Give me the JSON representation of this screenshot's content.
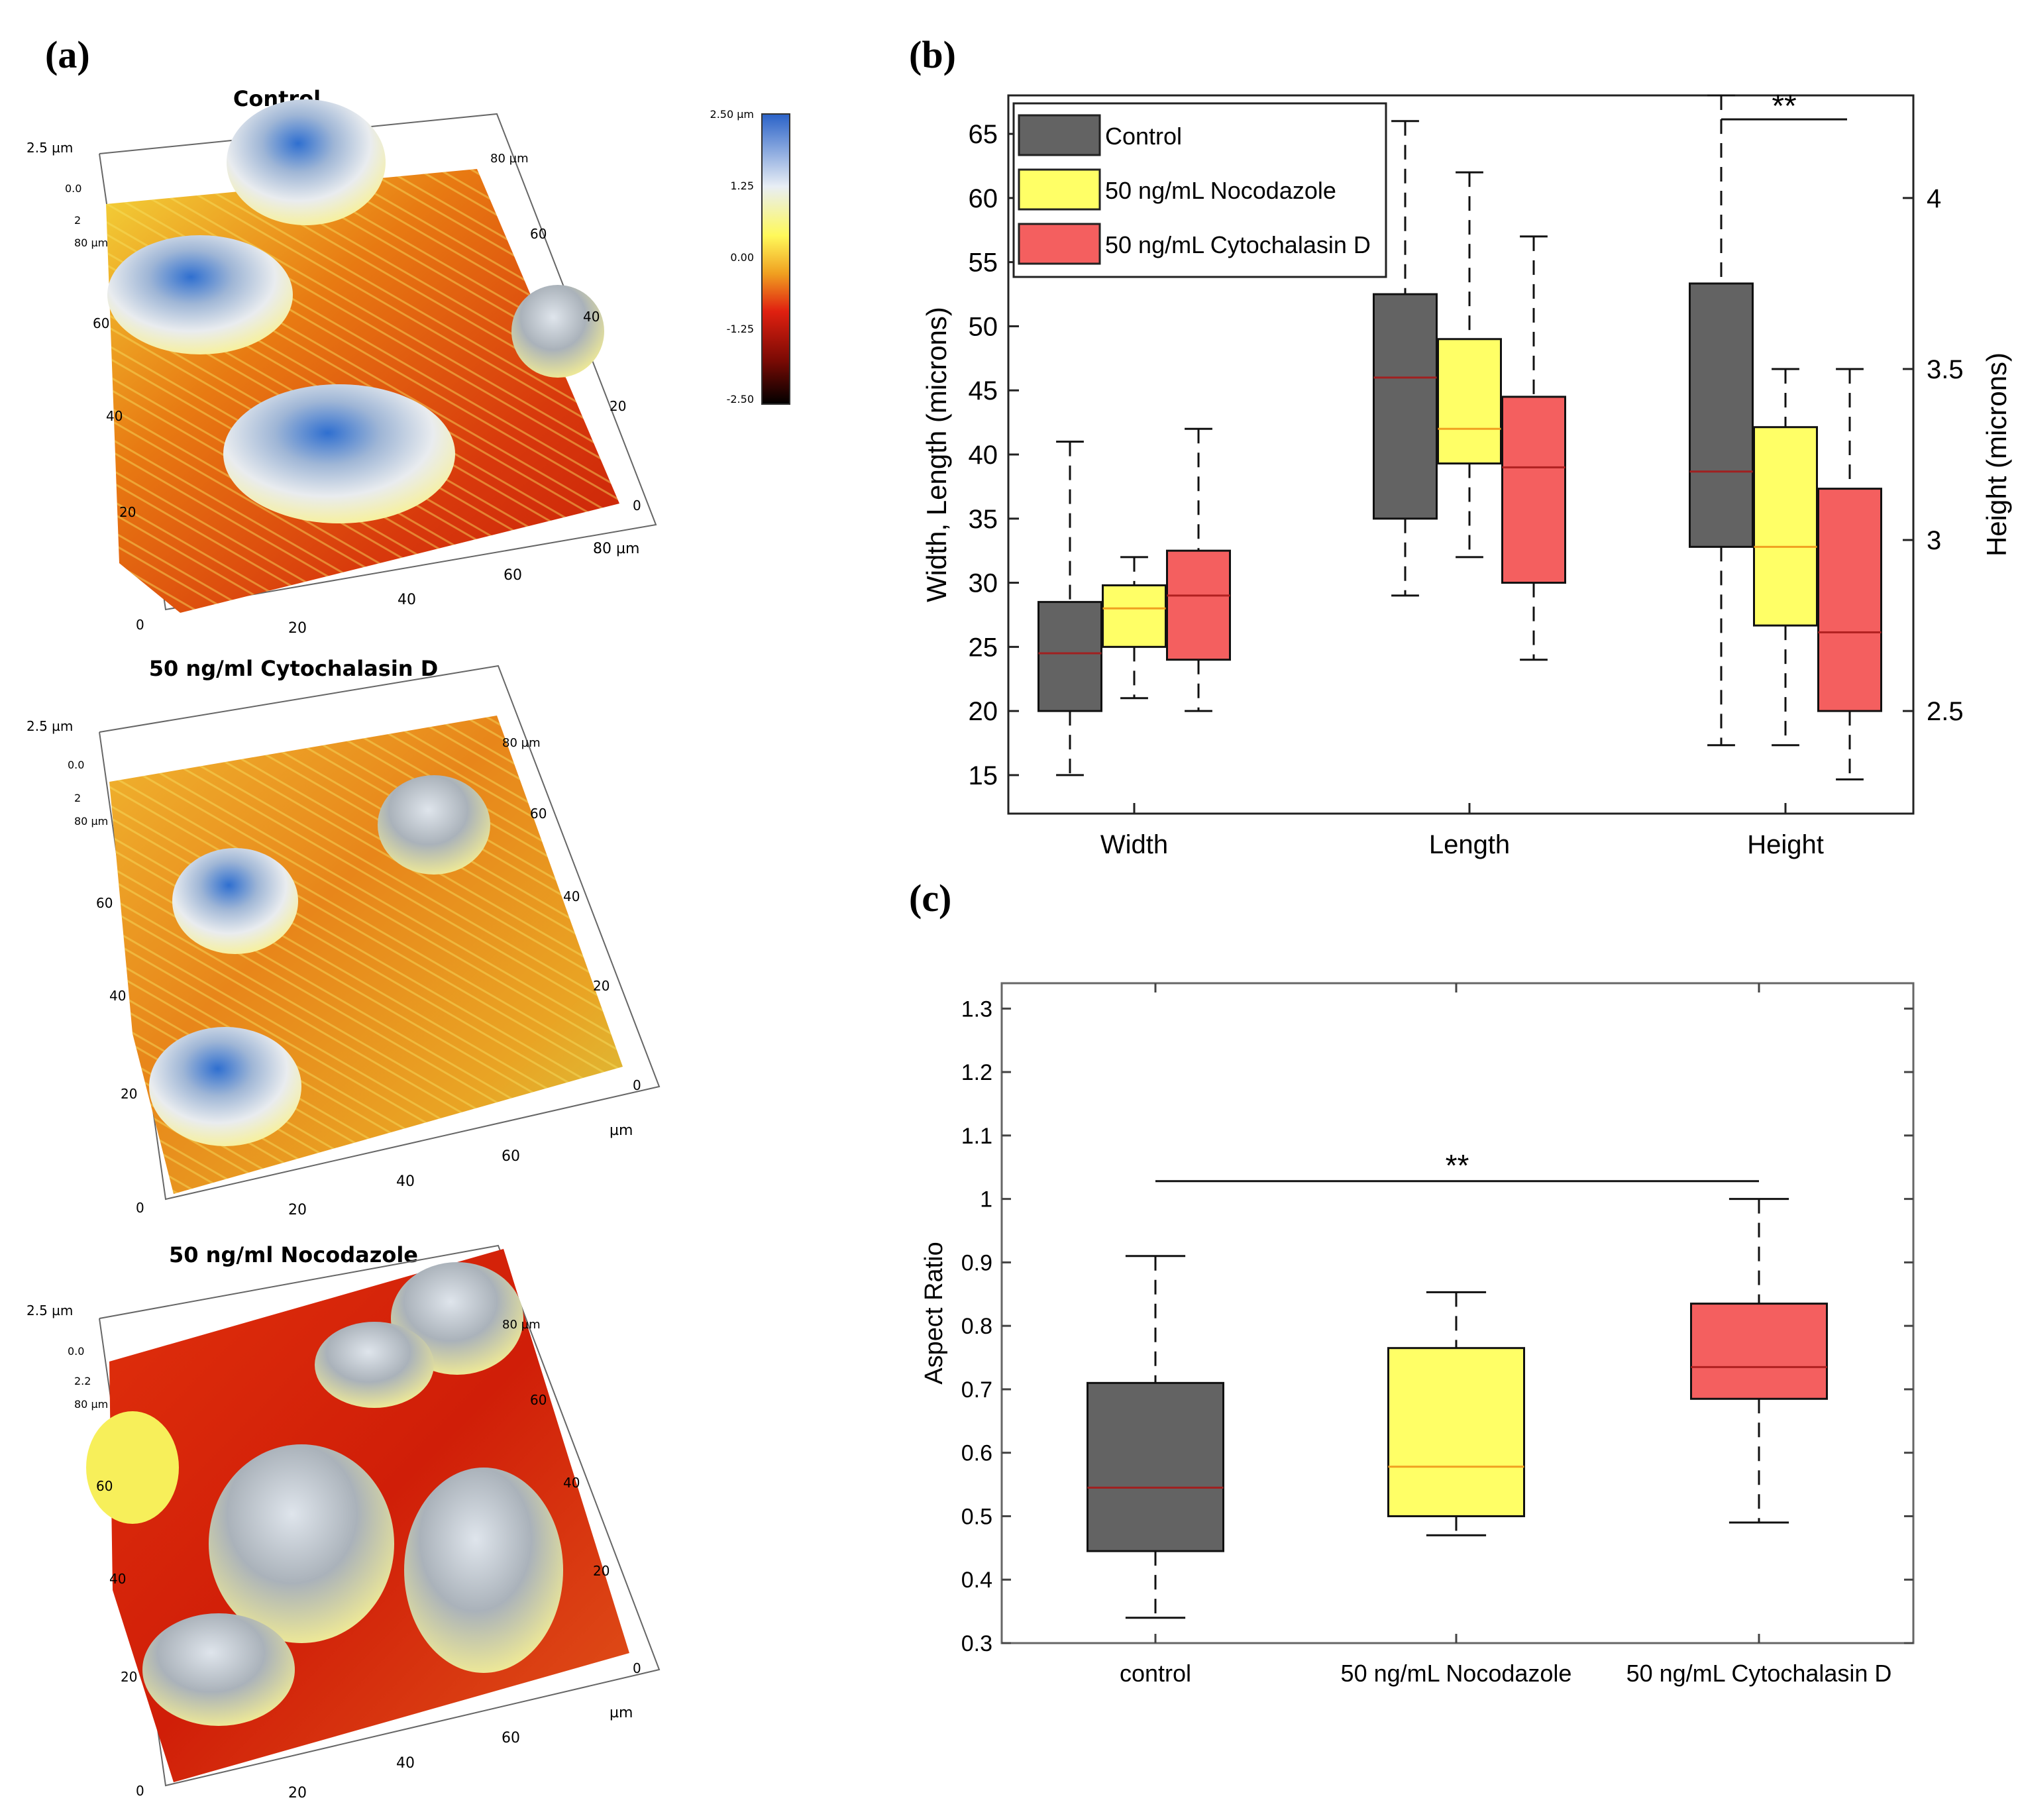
{
  "panel_a": {
    "label": "(a)",
    "colorbar": {
      "ticks": [
        "2.50 µm",
        "1.25",
        "0.00",
        "-1.25",
        "-2.50"
      ]
    },
    "plots": [
      {
        "title": "Control",
        "axis_labels": [
          "2.5 µm",
          "0.0",
          "2",
          "80 µm",
          "60",
          "40",
          "20",
          "0",
          "20",
          "40",
          "60",
          "80 µm",
          "0",
          "20",
          "40",
          "60",
          "80 µm"
        ]
      },
      {
        "title": "50 ng/ml Cytochalasin D",
        "axis_labels": [
          "2.5 µm",
          "0.0",
          "2",
          "80 µm",
          "60",
          "40",
          "20",
          "0",
          "20",
          "40",
          "60",
          "80 µm",
          "0",
          "20",
          "40",
          "60",
          "µm"
        ]
      },
      {
        "title": "50 ng/ml Nocodazole",
        "axis_labels": [
          "2.5 µm",
          "0.0",
          "2.2",
          "80 µm",
          "60",
          "40",
          "20",
          "0",
          "20",
          "40",
          "60",
          "80 µm",
          "0",
          "20",
          "40",
          "60",
          "µm"
        ]
      }
    ]
  },
  "chart_data": [
    {
      "id": "b",
      "label": "(b)",
      "type": "box",
      "categories": [
        "Width",
        "Length",
        "Height"
      ],
      "ylabel": "Width, Length (microns)",
      "ylabel_right": "Height (microns)",
      "ylim": [
        12,
        68
      ],
      "ylim_right": [
        2.2,
        4.3
      ],
      "yticks": [
        15,
        20,
        25,
        30,
        35,
        40,
        45,
        50,
        55,
        60,
        65
      ],
      "yticks_right": [
        2.5,
        3,
        3.5,
        4
      ],
      "series": [
        {
          "name": "Control",
          "color": "#636363",
          "median_color": "#a02020",
          "boxes": [
            {
              "min": 15,
              "q1": 20,
              "median": 24.5,
              "q3": 28.5,
              "max": 41
            },
            {
              "min": 29,
              "q1": 35,
              "median": 46,
              "q3": 52.5,
              "max": 66
            },
            {
              "min": 2.4,
              "q1": 2.98,
              "median": 3.2,
              "q3": 3.75,
              "max": 4.3,
              "right_axis": true
            }
          ]
        },
        {
          "name": "50 ng/mL Nocodazole",
          "color": "#ffff66",
          "median_color": "#f0a020",
          "boxes": [
            {
              "min": 21,
              "q1": 25,
              "median": 28,
              "q3": 29.8,
              "max": 32
            },
            {
              "min": 32,
              "q1": 39.3,
              "median": 42,
              "q3": 49,
              "max": 62
            },
            {
              "min": 2.4,
              "q1": 2.75,
              "median": 2.98,
              "q3": 3.33,
              "max": 3.5,
              "right_axis": true
            }
          ]
        },
        {
          "name": "50 ng/mL Cytochalasin D",
          "color": "#f45f5f",
          "median_color": "#b02020",
          "boxes": [
            {
              "min": 20,
              "q1": 24,
              "median": 29,
              "q3": 32.5,
              "max": 42
            },
            {
              "min": 24,
              "q1": 30,
              "median": 39,
              "q3": 44.5,
              "max": 57
            },
            {
              "min": 2.3,
              "q1": 2.5,
              "median": 2.73,
              "q3": 3.15,
              "max": 3.5,
              "right_axis": true
            }
          ]
        }
      ],
      "annotations": [
        {
          "text": "**",
          "category": "Height"
        }
      ]
    },
    {
      "id": "c",
      "label": "(c)",
      "type": "box",
      "categories": [
        "control",
        "50 ng/mL Nocodazole",
        "50 ng/mL Cytochalasin D"
      ],
      "ylabel": "Aspect Ratio",
      "ylim": [
        0.3,
        1.34
      ],
      "yticks": [
        "0.3",
        "0.4",
        "0.5",
        "0.6",
        "0.7",
        "0.8",
        "0.9",
        "1",
        "1.1",
        "1.2",
        "1.3"
      ],
      "boxes": [
        {
          "color": "#636363",
          "median_color": "#a02020",
          "min": 0.34,
          "q1": 0.445,
          "median": 0.545,
          "q3": 0.71,
          "max": 0.91
        },
        {
          "color": "#ffff66",
          "median_color": "#f0a020",
          "min": 0.47,
          "q1": 0.5,
          "median": 0.578,
          "q3": 0.765,
          "max": 0.853
        },
        {
          "color": "#f45f5f",
          "median_color": "#b02020",
          "min": 0.49,
          "q1": 0.685,
          "median": 0.735,
          "q3": 0.835,
          "max": 1.0
        }
      ],
      "annotations": [
        {
          "text": "**",
          "from": "control",
          "to": "50 ng/mL Cytochalasin D"
        }
      ]
    }
  ]
}
